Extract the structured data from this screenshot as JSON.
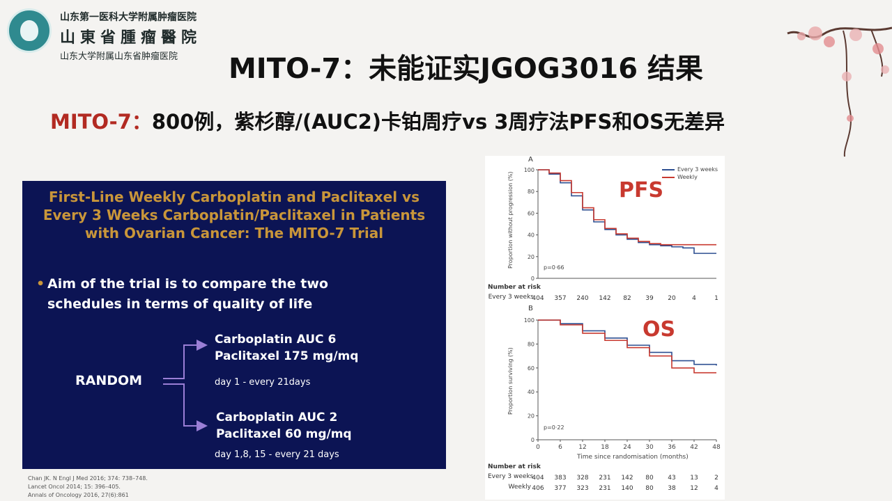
{
  "logo": {
    "line1": "山东第一医科大学附属肿瘤医院",
    "line2": "山東省腫瘤醫院",
    "line3": "山东大学附属山东省肿瘤医院"
  },
  "title": "MITO-7：未能证实JGOG3016 结果",
  "subtitle": {
    "highlight": "MITO-7：",
    "rest": "800例，紫杉醇/(AUC2)卡铂周疗vs 3周疗法PFS和OS无差异"
  },
  "slide": {
    "title": "First-Line Weekly Carboplatin and Paclitaxel vs\nEvery 3 Weeks Carboplatin/Paclitaxel in Patients\nwith Ovarian Cancer: The MITO-7 Trial",
    "bullet": "Aim of the trial is to compare the two schedules in terms of quality of life",
    "random": "RANDOM",
    "arm1": {
      "line1": "Carboplatin AUC 6",
      "line2": "Paclitaxel 175 mg/mq",
      "schedule": "day 1 - every 21days"
    },
    "arm2": {
      "line1": "Carboplatin AUC 2",
      "line2": "Paclitaxel 60 mg/mq",
      "schedule": "day 1,8, 15 - every 21 days"
    }
  },
  "refs": [
    "Chan JK. N Engl J Med 2016; 374: 738–748.",
    "Lancet Oncol 2014; 15: 396–405.",
    "Annals of Oncology 2016, 27(6):861"
  ],
  "chart_data": [
    {
      "type": "line",
      "panel": "A",
      "title": "PFS",
      "xlabel": "",
      "ylabel": "Proportion without progression (%)",
      "xlim": [
        0,
        48
      ],
      "ylim": [
        0,
        100
      ],
      "yticks": [
        0,
        20,
        40,
        60,
        80,
        100
      ],
      "legend": {
        "position": "top-right",
        "entries": [
          "Every 3 weeks",
          "Weekly"
        ]
      },
      "p_value": "p=0·66",
      "series": [
        {
          "name": "Every 3 weeks",
          "color": "#2d4f91",
          "x": [
            0,
            3,
            6,
            9,
            12,
            15,
            18,
            21,
            24,
            27,
            30,
            33,
            36,
            39,
            42,
            45,
            48
          ],
          "y": [
            100,
            96,
            88,
            76,
            63,
            52,
            45,
            40,
            36,
            33,
            31,
            30,
            29,
            28,
            23,
            23,
            23
          ]
        },
        {
          "name": "Weekly",
          "color": "#c8392f",
          "x": [
            0,
            3,
            6,
            9,
            12,
            15,
            18,
            21,
            24,
            27,
            30,
            33,
            36,
            39,
            42,
            45,
            48
          ],
          "y": [
            100,
            97,
            90,
            79,
            65,
            54,
            46,
            41,
            37,
            34,
            32,
            31,
            31,
            31,
            31,
            31,
            31
          ]
        }
      ],
      "risk_title": "Number at risk",
      "risk_table": [
        {
          "label": "Every 3 weeks",
          "values": [
            "404",
            "357",
            "240",
            "142",
            "82",
            "39",
            "20",
            "4",
            "1"
          ]
        }
      ]
    },
    {
      "type": "line",
      "panel": "B",
      "title": "OS",
      "xlabel": "Time since randomisation (months)",
      "ylabel": "Proportion surviving (%)",
      "xlim": [
        0,
        48
      ],
      "ylim": [
        0,
        100
      ],
      "xticks": [
        0,
        6,
        12,
        18,
        24,
        30,
        36,
        42,
        48
      ],
      "yticks": [
        0,
        20,
        40,
        60,
        80,
        100
      ],
      "p_value": "p=0·22",
      "series": [
        {
          "name": "Every 3 weeks",
          "color": "#2d4f91",
          "x": [
            0,
            6,
            12,
            18,
            24,
            30,
            36,
            42,
            48
          ],
          "y": [
            100,
            97,
            91,
            85,
            79,
            73,
            66,
            63,
            62
          ]
        },
        {
          "name": "Weekly",
          "color": "#c8392f",
          "x": [
            0,
            6,
            12,
            18,
            24,
            30,
            36,
            42,
            48
          ],
          "y": [
            100,
            96,
            89,
            83,
            77,
            70,
            60,
            56,
            56
          ]
        }
      ],
      "risk_title": "Number at risk",
      "risk_table": [
        {
          "label": "Every 3 weeks",
          "values": [
            "404",
            "383",
            "328",
            "231",
            "142",
            "80",
            "43",
            "13",
            "2"
          ]
        },
        {
          "label": "Weekly",
          "values": [
            "406",
            "377",
            "323",
            "231",
            "140",
            "80",
            "38",
            "12",
            "4"
          ]
        }
      ]
    }
  ]
}
